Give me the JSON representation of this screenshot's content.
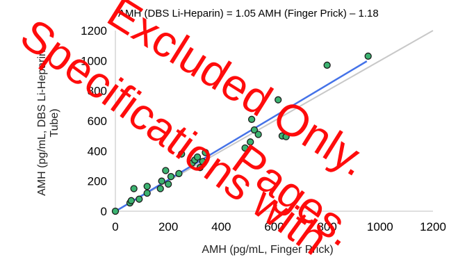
{
  "chart_data": {
    "type": "scatter",
    "title": "AMH (DBS Li-Heparin) = 1.05 AMH (Finger Prick) – 1.18",
    "xlabel": "AMH (pg/mL, Finger Prick)",
    "ylabel_lines": [
      "AMH (pg/mL, DBS Li-Heparin",
      "Tube)"
    ],
    "xlim": [
      0,
      1200
    ],
    "ylim": [
      0,
      1200
    ],
    "xticks": [
      "0",
      "200",
      "400",
      "600",
      "800",
      "1000",
      "1200"
    ],
    "yticks": [
      "0",
      "200",
      "400",
      "600",
      "800",
      "1000",
      "1200"
    ],
    "grid": false,
    "legend": "none",
    "points": [
      {
        "x": 0,
        "y": 0
      },
      {
        "x": 55,
        "y": 55
      },
      {
        "x": 60,
        "y": 70
      },
      {
        "x": 70,
        "y": 150
      },
      {
        "x": 90,
        "y": 80
      },
      {
        "x": 120,
        "y": 120
      },
      {
        "x": 120,
        "y": 165
      },
      {
        "x": 170,
        "y": 150
      },
      {
        "x": 175,
        "y": 200
      },
      {
        "x": 190,
        "y": 270
      },
      {
        "x": 200,
        "y": 180
      },
      {
        "x": 210,
        "y": 230
      },
      {
        "x": 240,
        "y": 250
      },
      {
        "x": 250,
        "y": 380
      },
      {
        "x": 290,
        "y": 320
      },
      {
        "x": 300,
        "y": 340
      },
      {
        "x": 310,
        "y": 360
      },
      {
        "x": 320,
        "y": 290
      },
      {
        "x": 330,
        "y": 330
      },
      {
        "x": 340,
        "y": 390
      },
      {
        "x": 490,
        "y": 420
      },
      {
        "x": 510,
        "y": 460
      },
      {
        "x": 515,
        "y": 610
      },
      {
        "x": 525,
        "y": 540
      },
      {
        "x": 540,
        "y": 510
      },
      {
        "x": 615,
        "y": 740
      },
      {
        "x": 630,
        "y": 500
      },
      {
        "x": 645,
        "y": 495
      },
      {
        "x": 800,
        "y": 970
      },
      {
        "x": 955,
        "y": 1030
      }
    ],
    "fit_line": {
      "slope": 1.05,
      "intercept": -1.18,
      "x_range": [
        0,
        950
      ],
      "color": "#4472e8"
    },
    "identity_line": {
      "x_range": [
        0,
        1200
      ],
      "color": "#c8c8c8"
    },
    "marker": {
      "fill": "#3cb371",
      "stroke": "#1a1a1a"
    }
  },
  "watermark": {
    "lines": [
      "Excluded Only.",
      "Specifications with",
      "Pages."
    ],
    "color": "#ff0000"
  }
}
